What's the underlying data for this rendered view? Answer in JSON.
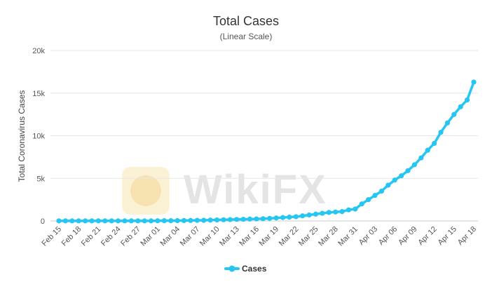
{
  "chart_data": {
    "type": "line",
    "title": "Total Cases",
    "subtitle": "(Linear Scale)",
    "xlabel": "",
    "ylabel": "Total Coronavirus Cases",
    "ylim": [
      0,
      20000
    ],
    "yticks": [
      0,
      5000,
      10000,
      15000,
      20000
    ],
    "ytick_labels": [
      "0",
      "5k",
      "10k",
      "15k",
      "20k"
    ],
    "grid": true,
    "legend": "bottom-center",
    "color": "#26c6f2",
    "x": [
      "Feb 15",
      "Feb 16",
      "Feb 17",
      "Feb 18",
      "Feb 19",
      "Feb 20",
      "Feb 21",
      "Feb 22",
      "Feb 23",
      "Feb 24",
      "Feb 25",
      "Feb 26",
      "Feb 27",
      "Feb 28",
      "Feb 29",
      "Mar 01",
      "Mar 02",
      "Mar 03",
      "Mar 04",
      "Mar 05",
      "Mar 06",
      "Mar 07",
      "Mar 08",
      "Mar 09",
      "Mar 10",
      "Mar 11",
      "Mar 12",
      "Mar 13",
      "Mar 14",
      "Mar 15",
      "Mar 16",
      "Mar 17",
      "Mar 18",
      "Mar 19",
      "Mar 20",
      "Mar 21",
      "Mar 22",
      "Mar 23",
      "Mar 24",
      "Mar 25",
      "Mar 26",
      "Mar 27",
      "Mar 28",
      "Mar 29",
      "Mar 30",
      "Mar 31",
      "Apr 01",
      "Apr 02",
      "Apr 03",
      "Apr 04",
      "Apr 05",
      "Apr 06",
      "Apr 07",
      "Apr 08",
      "Apr 09",
      "Apr 10",
      "Apr 11",
      "Apr 12",
      "Apr 13",
      "Apr 14",
      "Apr 15",
      "Apr 16",
      "Apr 17",
      "Apr 18"
    ],
    "x_tick_labels": [
      "Feb 15",
      "Feb 18",
      "Feb 21",
      "Feb 24",
      "Feb 27",
      "Mar 01",
      "Mar 04",
      "Mar 07",
      "Mar 10",
      "Mar 13",
      "Mar 16",
      "Mar 19",
      "Mar 22",
      "Mar 25",
      "Mar 28",
      "Mar 31",
      "Apr 03",
      "Apr 06",
      "Apr 09",
      "Apr 12",
      "Apr 15",
      "Apr 18"
    ],
    "series": [
      {
        "name": "Cases",
        "values": [
          10,
          10,
          10,
          10,
          10,
          10,
          10,
          10,
          10,
          10,
          10,
          10,
          10,
          10,
          10,
          20,
          30,
          30,
          40,
          50,
          60,
          70,
          80,
          100,
          120,
          140,
          160,
          180,
          200,
          220,
          240,
          260,
          300,
          350,
          400,
          450,
          500,
          600,
          700,
          800,
          900,
          1000,
          1050,
          1100,
          1300,
          1400,
          2000,
          2500,
          3000,
          3500,
          4200,
          4800,
          5300,
          5900,
          6600,
          7400,
          8300,
          9100,
          10400,
          11500,
          12500,
          13400,
          14200,
          16300
        ]
      }
    ]
  },
  "watermark": "WikiFX"
}
